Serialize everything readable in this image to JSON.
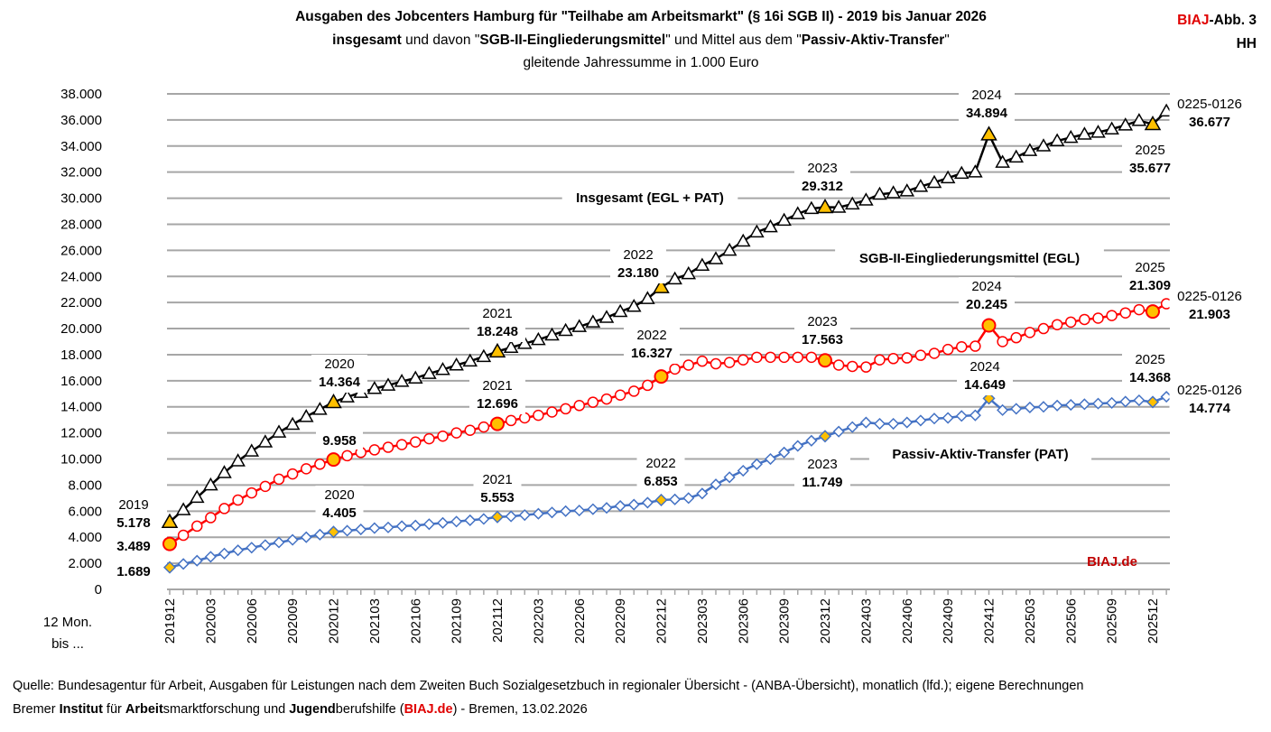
{
  "header": {
    "title_line1": "Ausgaben des Jobcenters Hamburg für \"Teilhabe am Arbeitsmarkt\" (§ 16i SGB II) - 2019 bis Januar 2026",
    "title_line2_parts": [
      "insgesamt",
      " und davon \"",
      "SGB-II-Eingliederungsmittel",
      "\" und Mittel aus dem \"",
      "Passiv-Aktiv-Transfer",
      "\""
    ],
    "title_line3": "gleitende  Jahressumme in 1.000 Euro",
    "badge_brand": "BIAJ",
    "badge_rest": "-Abb. 3",
    "badge_region": "HH"
  },
  "footer": {
    "source": "Quelle: Bundesagentur für Arbeit, Ausgaben für Leistungen nach dem Zweiten Buch Sozialgesetzbuch in regionaler Übersicht - (ANBA-Übersicht), monatlich (lfd.); eigene Berechnungen",
    "credit_parts": [
      "Bremer ",
      "Institut",
      " für ",
      "Arbeit",
      "smarktforschung und ",
      "Jugend",
      "berufshilfe (",
      "BIAJ.de",
      ") - Bremen, 13.02.2026"
    ]
  },
  "chart_data": {
    "type": "line",
    "title": "Ausgaben des Jobcenters Hamburg für \"Teilhabe am Arbeitsmarkt\" (§ 16i SGB II) - 2019 bis Januar 2026",
    "ylabel": "gleitende Jahressumme in 1.000 Euro",
    "xlabel_lines": [
      "12 Mon.",
      "bis ..."
    ],
    "ylim": [
      0,
      38000
    ],
    "yticks": [
      "0",
      "2.000",
      "4.000",
      "6.000",
      "8.000",
      "10.000",
      "12.000",
      "14.000",
      "16.000",
      "18.000",
      "20.000",
      "22.000",
      "24.000",
      "26.000",
      "28.000",
      "30.000",
      "32.000",
      "34.000",
      "36.000",
      "38.000"
    ],
    "x_start": "201912",
    "x_end": "202601",
    "xtick_labels": [
      "201912",
      "202003",
      "202006",
      "202009",
      "202012",
      "202103",
      "202106",
      "202109",
      "202112",
      "202203",
      "202206",
      "202209",
      "202212",
      "202303",
      "202306",
      "202309",
      "202312",
      "202403",
      "202406",
      "202409",
      "202412",
      "202503",
      "202506",
      "202509",
      "202512"
    ],
    "grid": true,
    "watermark": "BIAJ.de",
    "series": [
      {
        "name": "Insgesamt (EGL + PAT)",
        "color": "#000000",
        "marker": "triangle",
        "values": [
          5178,
          6100,
          7050,
          8000,
          8950,
          9850,
          10600,
          11300,
          12050,
          12650,
          13250,
          13800,
          14364,
          14750,
          15100,
          15400,
          15650,
          15950,
          16200,
          16550,
          16850,
          17200,
          17500,
          17850,
          18248,
          18550,
          18850,
          19150,
          19500,
          19850,
          20150,
          20500,
          20850,
          21300,
          21700,
          22300,
          23180,
          23800,
          24200,
          24850,
          25350,
          26000,
          26700,
          27400,
          27800,
          28300,
          28800,
          29200,
          29312,
          29300,
          29550,
          29850,
          30300,
          30400,
          30550,
          30900,
          31200,
          31550,
          31900,
          32000,
          34894,
          32750,
          33150,
          33650,
          34000,
          34400,
          34650,
          34900,
          35050,
          35300,
          35600,
          35950,
          35677,
          36677
        ]
      },
      {
        "name": "SGB-II-Eingliederungsmittel (EGL)",
        "color": "#ff0000",
        "marker": "circle",
        "values": [
          3489,
          4150,
          4850,
          5500,
          6200,
          6850,
          7400,
          7900,
          8450,
          8850,
          9250,
          9600,
          9958,
          10250,
          10500,
          10700,
          10900,
          11100,
          11300,
          11550,
          11750,
          12000,
          12200,
          12450,
          12696,
          12950,
          13150,
          13350,
          13600,
          13850,
          14100,
          14350,
          14600,
          14900,
          15200,
          15650,
          16327,
          16900,
          17200,
          17500,
          17300,
          17400,
          17600,
          17800,
          17800,
          17800,
          17800,
          17800,
          17563,
          17200,
          17100,
          17050,
          17600,
          17700,
          17750,
          17950,
          18100,
          18400,
          18600,
          18650,
          20245,
          19000,
          19300,
          19700,
          20000,
          20300,
          20500,
          20700,
          20800,
          21000,
          21200,
          21450,
          21309,
          21903
        ]
      },
      {
        "name": "Passiv-Aktiv-Transfer (PAT)",
        "color": "#4472c4",
        "marker": "diamond",
        "values": [
          1689,
          1950,
          2200,
          2500,
          2750,
          3000,
          3200,
          3400,
          3600,
          3800,
          4000,
          4200,
          4405,
          4500,
          4600,
          4700,
          4750,
          4850,
          4900,
          5000,
          5100,
          5200,
          5300,
          5400,
          5553,
          5600,
          5700,
          5800,
          5900,
          6000,
          6050,
          6150,
          6250,
          6400,
          6500,
          6650,
          6853,
          6900,
          7000,
          7350,
          8050,
          8600,
          9100,
          9600,
          10000,
          10500,
          11000,
          11400,
          11749,
          12100,
          12450,
          12800,
          12700,
          12700,
          12800,
          12950,
          13100,
          13150,
          13300,
          13350,
          14649,
          13750,
          13850,
          13950,
          14000,
          14100,
          14150,
          14200,
          14250,
          14300,
          14400,
          14500,
          14368,
          14774
        ]
      }
    ],
    "highlight_color": "#ffc000",
    "annotations": {
      "total": [
        [
          "2019",
          "5.178"
        ],
        [
          "2020",
          "14.364"
        ],
        [
          "2021",
          "18.248"
        ],
        [
          "2022",
          "23.180"
        ],
        [
          "2023",
          "29.312"
        ],
        [
          "2024",
          "34.894"
        ],
        [
          "2025",
          "35.677"
        ],
        [
          "0225-0126",
          "36.677"
        ]
      ],
      "egl": [
        [
          "",
          "3.489"
        ],
        [
          "",
          "9.958"
        ],
        [
          "2021",
          "12.696"
        ],
        [
          "2022",
          "16.327"
        ],
        [
          "2023",
          "17.563"
        ],
        [
          "2024",
          "20.245"
        ],
        [
          "2025",
          "21.309"
        ],
        [
          "0225-0126",
          "21.903"
        ]
      ],
      "pat": [
        [
          "",
          "1.689"
        ],
        [
          "2020",
          "4.405"
        ],
        [
          "2021",
          "5.553"
        ],
        [
          "2022",
          "6.853"
        ],
        [
          "2023",
          "11.749"
        ],
        [
          "2024",
          "14.649"
        ],
        [
          "2025",
          "14.368"
        ],
        [
          "0225-0126",
          "14.774"
        ]
      ]
    }
  }
}
